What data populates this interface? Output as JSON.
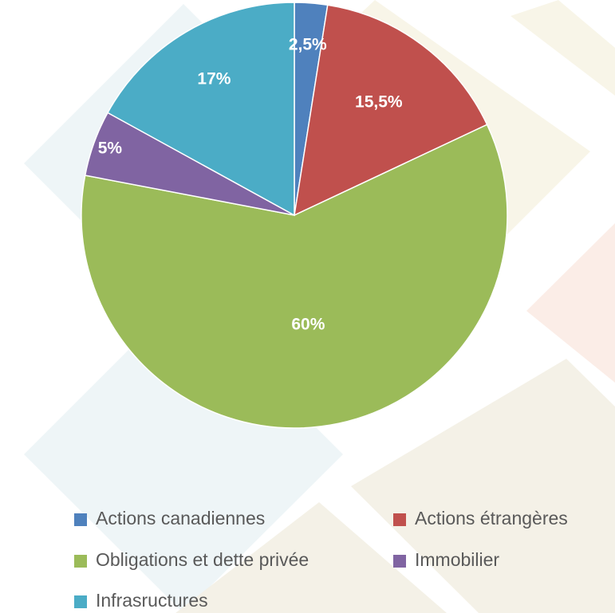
{
  "chart_data": {
    "type": "pie",
    "categories": [
      "Actions canadiennes",
      "Actions étrangères",
      "Obligations et dette privée",
      "Immobilier",
      "Infrasructures"
    ],
    "values": [
      2.5,
      15.5,
      60,
      5,
      17
    ],
    "value_labels": [
      "2,5%",
      "15,5%",
      "60%",
      "5%",
      "17%"
    ],
    "colors": [
      "#4f81bd",
      "#c0504d",
      "#9bbb59",
      "#8064a2",
      "#4bacc6"
    ],
    "legend": "bottom"
  }
}
